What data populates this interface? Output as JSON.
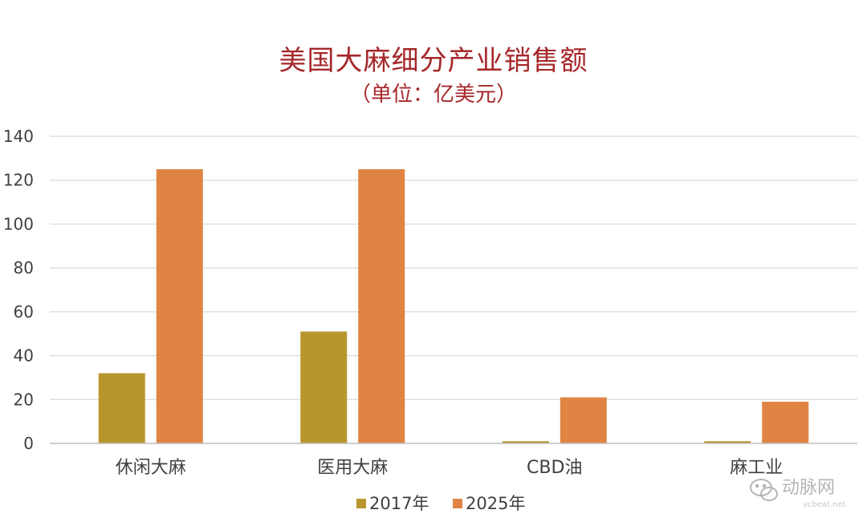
{
  "chart_data": {
    "type": "bar",
    "title": "美国大麻细分产业销售额",
    "subtitle": "（单位：亿美元）",
    "categories": [
      "休闲大麻",
      "医用大麻",
      "CBD油",
      "麻工业"
    ],
    "series": [
      {
        "name": "2017年",
        "values": [
          32,
          51,
          1,
          1
        ],
        "color": "#b8962e"
      },
      {
        "name": "2025年",
        "values": [
          125,
          125,
          21,
          19
        ],
        "color": "#e08444"
      }
    ],
    "ylim": [
      0,
      140
    ],
    "yticks": [
      0,
      20,
      40,
      60,
      80,
      100,
      120,
      140
    ],
    "grid": true,
    "legend_position": "bottom"
  },
  "style": {
    "title_color": "#a6282b",
    "text_color": "#404040",
    "grid_color": "#d9d9d9",
    "axis_color": "#bfbfbf"
  },
  "watermark": {
    "icon": "wechat-icon",
    "brand": "动脉网",
    "url": "vcbeat.net"
  }
}
